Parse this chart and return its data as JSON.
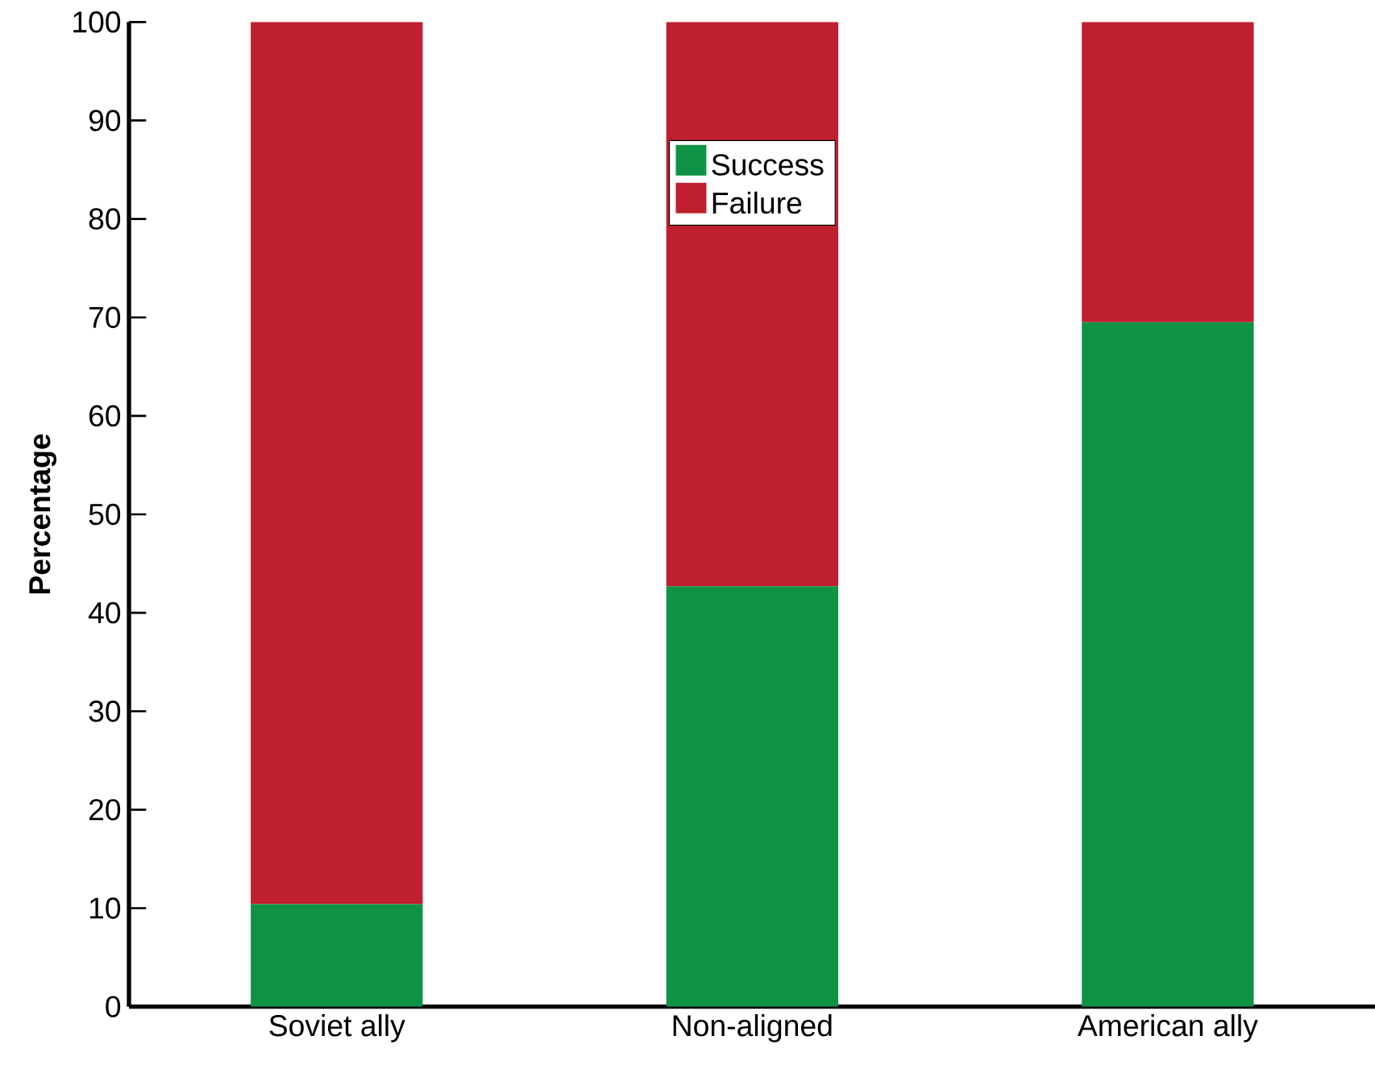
{
  "chart_data": {
    "type": "bar",
    "stacked": true,
    "ylabel": "Percentage",
    "categories": [
      "Soviet ally",
      "Non-aligned",
      "American ally"
    ],
    "series": [
      {
        "name": "Success",
        "color": "#0e9346",
        "values": [
          10.4,
          42.7,
          69.5
        ]
      },
      {
        "name": "Failure",
        "color": "#c01f2e",
        "values": [
          89.6,
          57.3,
          30.5
        ]
      }
    ],
    "ylim": [
      0,
      100
    ],
    "yticks": [
      0,
      10,
      20,
      30,
      40,
      50,
      60,
      70,
      80,
      90,
      100
    ],
    "legend": "top",
    "grid": false
  }
}
